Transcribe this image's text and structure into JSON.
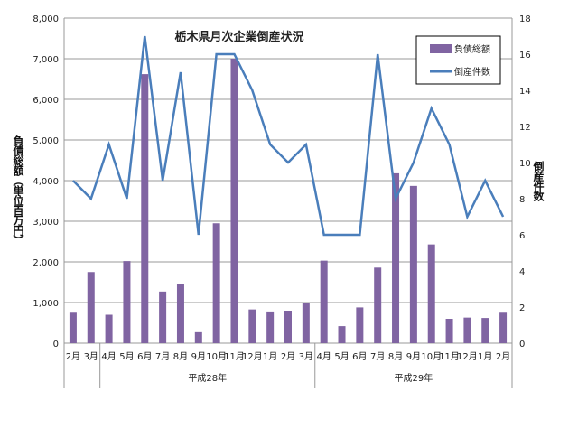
{
  "chart_data": {
    "type": "bar+line",
    "title": "栃木県月次企業倒産状況",
    "ylabel": "負債総額（単位百万円）",
    "y2label": "倒産件数",
    "ylim": [
      0,
      8000
    ],
    "y2lim": [
      0,
      18
    ],
    "yticks": [
      "0",
      "1,000",
      "2,000",
      "3,000",
      "4,000",
      "5,000",
      "6,000",
      "7,000",
      "8,000"
    ],
    "y2ticks": [
      "0",
      "2",
      "4",
      "6",
      "8",
      "10",
      "12",
      "14",
      "16",
      "18"
    ],
    "grid": true,
    "legend_position": "top-right",
    "categories": [
      "2月",
      "3月",
      "4月",
      "5月",
      "6月",
      "7月",
      "8月",
      "9月",
      "10月",
      "11月",
      "12月",
      "1月",
      "2月",
      "3月",
      "4月",
      "5月",
      "6月",
      "7月",
      "8月",
      "9月",
      "10月",
      "11月",
      "12月",
      "1月",
      "2月"
    ],
    "groups": [
      {
        "label": "",
        "count": 2
      },
      {
        "label": "平成28年",
        "count": 12
      },
      {
        "label": "平成29年",
        "count": 11
      }
    ],
    "series": [
      {
        "name": "負債総額",
        "type": "bar",
        "axis": "left",
        "color": "#8064a2",
        "values": [
          750,
          1750,
          700,
          2020,
          6620,
          1270,
          1450,
          270,
          2950,
          7000,
          830,
          780,
          800,
          980,
          2030,
          420,
          880,
          1860,
          4180,
          3870,
          2430,
          600,
          630,
          620,
          750
        ]
      },
      {
        "name": "倒産件数",
        "type": "line",
        "axis": "right",
        "color": "#4a7ebb",
        "values": [
          9,
          8,
          11,
          8,
          17,
          9,
          15,
          6,
          16,
          16,
          14,
          11,
          10,
          11,
          6,
          6,
          6,
          16,
          8,
          10,
          13,
          11,
          7,
          9,
          7
        ]
      }
    ]
  }
}
